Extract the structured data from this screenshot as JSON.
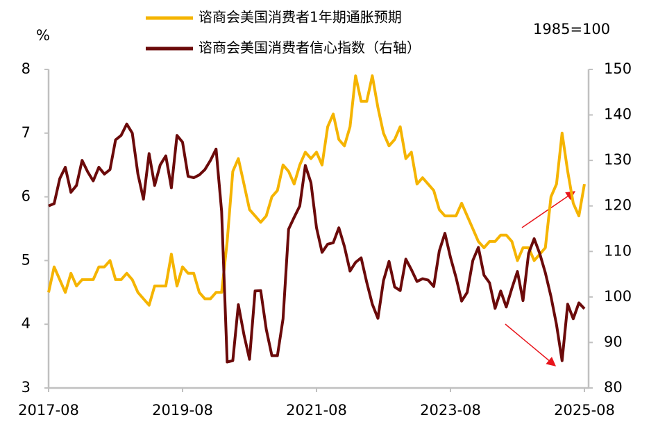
{
  "chart_data": {
    "type": "line",
    "y_label": "%",
    "y2_label": "1985=100",
    "x": [
      "2017-08",
      "2017-09",
      "2017-10",
      "2017-11",
      "2017-12",
      "2018-01",
      "2018-02",
      "2018-03",
      "2018-04",
      "2018-05",
      "2018-06",
      "2018-07",
      "2018-08",
      "2018-09",
      "2018-10",
      "2018-11",
      "2018-12",
      "2019-01",
      "2019-02",
      "2019-03",
      "2019-04",
      "2019-05",
      "2019-06",
      "2019-07",
      "2019-08",
      "2019-09",
      "2019-10",
      "2019-11",
      "2019-12",
      "2020-01",
      "2020-02",
      "2020-03",
      "2020-04",
      "2020-05",
      "2020-06",
      "2020-07",
      "2020-08",
      "2020-09",
      "2020-10",
      "2020-11",
      "2020-12",
      "2021-01",
      "2021-02",
      "2021-03",
      "2021-04",
      "2021-05",
      "2021-06",
      "2021-07",
      "2021-08",
      "2021-09",
      "2021-10",
      "2021-11",
      "2021-12",
      "2022-01",
      "2022-02",
      "2022-03",
      "2022-04",
      "2022-05",
      "2022-06",
      "2022-07",
      "2022-08",
      "2022-09",
      "2022-10",
      "2022-11",
      "2022-12",
      "2023-01",
      "2023-02",
      "2023-03",
      "2023-04",
      "2023-05",
      "2023-06",
      "2023-07",
      "2023-08",
      "2023-09",
      "2023-10",
      "2023-11",
      "2023-12",
      "2024-01",
      "2024-02",
      "2024-03",
      "2024-04",
      "2024-05",
      "2024-06",
      "2024-07",
      "2024-08",
      "2024-09",
      "2024-10",
      "2024-11",
      "2024-12",
      "2025-01",
      "2025-02",
      "2025-03",
      "2025-04",
      "2025-05",
      "2025-06",
      "2025-07",
      "2025-08"
    ],
    "xlim": [
      "2017-08",
      "2025-08"
    ],
    "xticks": [
      "2017-08",
      "2019-08",
      "2021-08",
      "2023-08",
      "2025-08"
    ],
    "ylim": [
      3,
      8
    ],
    "yticks": [
      3,
      4,
      5,
      6,
      7,
      8
    ],
    "y2lim": [
      80,
      150
    ],
    "y2ticks": [
      80,
      90,
      100,
      110,
      120,
      130,
      140,
      150
    ],
    "series": [
      {
        "name": "谘商会美国消费者1年期通胀预期",
        "color": "#f5b400",
        "axis": "y",
        "values": [
          4.5,
          4.9,
          4.7,
          4.5,
          4.8,
          4.6,
          4.7,
          4.7,
          4.7,
          4.9,
          4.9,
          5.0,
          4.7,
          4.7,
          4.8,
          4.7,
          4.5,
          4.4,
          4.3,
          4.6,
          4.6,
          4.6,
          5.1,
          4.6,
          4.9,
          4.8,
          4.8,
          4.5,
          4.4,
          4.4,
          4.5,
          4.5,
          5.3,
          6.4,
          6.6,
          6.2,
          5.8,
          5.7,
          5.6,
          5.7,
          6.0,
          6.1,
          6.5,
          6.4,
          6.2,
          6.5,
          6.7,
          6.6,
          6.7,
          6.5,
          7.1,
          7.3,
          6.9,
          6.8,
          7.1,
          7.9,
          7.5,
          7.5,
          7.9,
          7.4,
          7.0,
          6.8,
          6.9,
          7.1,
          6.6,
          6.7,
          6.2,
          6.3,
          6.2,
          6.1,
          5.8,
          5.7,
          5.7,
          5.7,
          5.9,
          5.7,
          5.5,
          5.3,
          5.2,
          5.3,
          5.3,
          5.4,
          5.4,
          5.3,
          5.0,
          5.2,
          5.2,
          5.0,
          5.1,
          5.2,
          6.0,
          6.2,
          7.0,
          6.4,
          5.9,
          5.7,
          6.2
        ]
      },
      {
        "name": "谘商会美国消费者信心指数（右轴）",
        "color": "#6b0a0a",
        "axis": "y2",
        "values": [
          120,
          120.5,
          126,
          128.5,
          123,
          124.5,
          130,
          127.5,
          125.5,
          128.5,
          127,
          128,
          134.5,
          135.5,
          138,
          136,
          127,
          121.5,
          131.5,
          124.5,
          129,
          131,
          124,
          135.5,
          134,
          126.5,
          126.2,
          126.8,
          128,
          130,
          132.5,
          118.8,
          85.7,
          86,
          98.3,
          91.7,
          86.3,
          101.3,
          101.4,
          92.9,
          87.1,
          87.1,
          95.2,
          114.9,
          117.5,
          120,
          128.9,
          125.1,
          115.2,
          109.8,
          111.6,
          111.9,
          115.2,
          111.1,
          105.7,
          107.6,
          108.6,
          103.2,
          98.4,
          95.3,
          103.6,
          107.8,
          102.2,
          101.4,
          108.3,
          106,
          103.4,
          104,
          103.7,
          102.3,
          110.1,
          114,
          108.7,
          104.3,
          99.1,
          101,
          108,
          110.9,
          104.8,
          103.1,
          97.5,
          101.3,
          97.8,
          101.9,
          105.6,
          99.2,
          109.6,
          112.8,
          109.5,
          105.3,
          100.1,
          93.9,
          86,
          98.4,
          95.2,
          98.7,
          97.4
        ]
      }
    ]
  }
}
